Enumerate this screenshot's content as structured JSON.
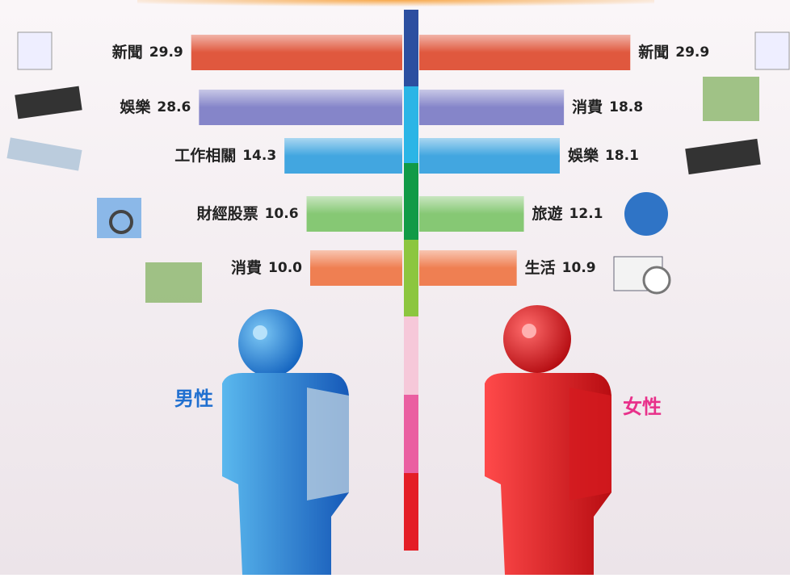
{
  "chart_data": {
    "type": "butterfly-bar",
    "series": [
      {
        "name": "男性",
        "color": "#1f6fd0",
        "categories": [
          "新聞",
          "娛樂",
          "工作相關",
          "財經股票",
          "消費"
        ],
        "values": [
          29.9,
          28.6,
          14.3,
          10.6,
          10.0
        ],
        "value_labels": [
          "29.9",
          "28.6",
          "14.3",
          "10.6",
          "10.0"
        ],
        "colors": [
          "#e0583e",
          "#8585c9",
          "#42a6e0",
          "#86c874",
          "#ef7f52"
        ]
      },
      {
        "name": "女性",
        "color": "#e8308a",
        "categories": [
          "新聞",
          "消費",
          "娛樂",
          "旅遊",
          "生活"
        ],
        "values": [
          29.9,
          18.8,
          18.1,
          12.1,
          10.9
        ],
        "value_labels": [
          "29.9",
          "18.8",
          "18.1",
          "12.1",
          "10.9"
        ],
        "colors": [
          "#e0583e",
          "#8585c9",
          "#42a6e0",
          "#86c874",
          "#ef7f52"
        ]
      }
    ]
  }
}
